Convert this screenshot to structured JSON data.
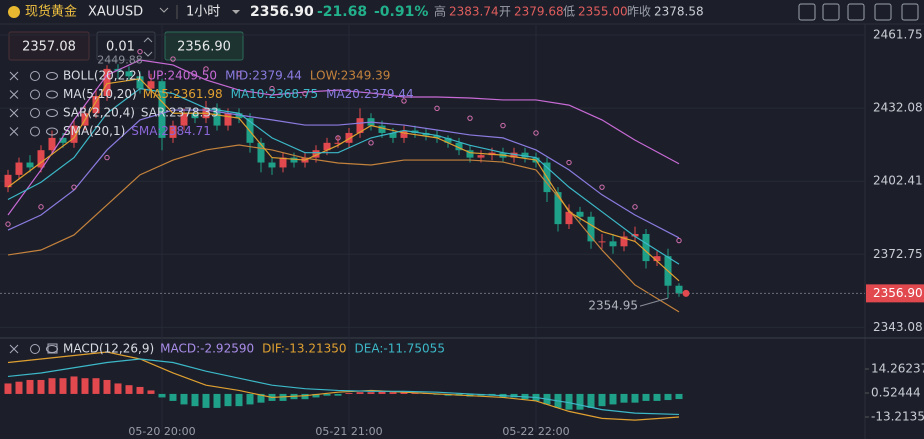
{
  "header": {
    "title": "现货黄金",
    "symbol": "XAUUSD",
    "interval": "1小时",
    "price": "2356.90",
    "change": "-21.68",
    "change_pct": "-0.91%",
    "stats": [
      {
        "label": "高",
        "value": "2383.74"
      },
      {
        "label": "开",
        "value": "2379.68"
      },
      {
        "label": "低",
        "value": "2355.00"
      },
      {
        "label": "昨收",
        "value": "2378.58"
      }
    ]
  },
  "order_panel": {
    "sell": "2357.08",
    "lot": "0.01",
    "buy": "2356.90"
  },
  "chart_data": {
    "type": "candlestick",
    "categories": [
      null,
      null,
      null,
      null,
      null,
      null,
      null,
      null,
      null,
      null,
      null,
      null,
      null,
      null,
      "05-20 20:00",
      null,
      null,
      null,
      null,
      null,
      null,
      null,
      null,
      null,
      null,
      null,
      null,
      null,
      null,
      null,
      null,
      "05-21 21:00",
      null,
      null,
      null,
      null,
      null,
      null,
      null,
      null,
      null,
      null,
      null,
      null,
      null,
      null,
      null,
      null,
      "05-22 22:00",
      null,
      null,
      null,
      null,
      null,
      null,
      null,
      null,
      null,
      null,
      null,
      null,
      null
    ],
    "open": [
      2400,
      2405,
      2410,
      2408,
      2415,
      2420,
      2418,
      2425,
      2430,
      2437,
      2448,
      2447,
      2445,
      2440,
      2443,
      2420,
      2425,
      2430,
      2428,
      2432,
      2425,
      2430,
      2428,
      2418,
      2410,
      2408,
      2412,
      2410,
      2412,
      2415,
      2418,
      2418,
      2422,
      2428,
      2425,
      2422,
      2420,
      2423,
      2422,
      2421,
      2420,
      2418,
      2415,
      2412,
      2413,
      2414,
      2412,
      2414,
      2412,
      2410,
      2398,
      2385,
      2390,
      2388,
      2378,
      2378,
      2376,
      2380,
      2381,
      2370,
      2372,
      2360
    ],
    "high": [
      2407,
      2412,
      2413,
      2417,
      2423,
      2422,
      2427,
      2433,
      2440,
      2449.5,
      2449.88,
      2449,
      2447,
      2446,
      2444,
      2427,
      2432,
      2432,
      2435,
      2434,
      2432,
      2432,
      2430,
      2420,
      2412,
      2414,
      2414,
      2414,
      2417,
      2420,
      2421,
      2424,
      2432,
      2430,
      2427,
      2424,
      2425,
      2425,
      2424,
      2423,
      2421,
      2420,
      2417,
      2415,
      2416,
      2416,
      2416,
      2416,
      2414,
      2412,
      2400,
      2393,
      2392,
      2390,
      2381,
      2381,
      2382,
      2384,
      2383,
      2374,
      2375,
      2361
    ],
    "low": [
      2398,
      2403,
      2406,
      2406,
      2413,
      2416,
      2416,
      2423,
      2428,
      2435,
      2444,
      2443,
      2438,
      2438,
      2415,
      2418,
      2423,
      2426,
      2426,
      2423,
      2423,
      2426,
      2414,
      2406,
      2405,
      2406,
      2408,
      2408,
      2410,
      2413,
      2416,
      2416,
      2420,
      2423,
      2420,
      2418,
      2418,
      2420,
      2419,
      2418,
      2416,
      2413,
      2410,
      2410,
      2411,
      2410,
      2410,
      2410,
      2408,
      2394,
      2382,
      2383,
      2386,
      2375,
      2375,
      2373,
      2374,
      2378,
      2367,
      2368,
      2354.95,
      2355.5
    ],
    "close": [
      2405,
      2410,
      2408,
      2415,
      2420,
      2418,
      2425,
      2430,
      2437,
      2448,
      2447,
      2445,
      2440,
      2443,
      2420,
      2425,
      2430,
      2428,
      2432,
      2425,
      2430,
      2428,
      2418,
      2410,
      2408,
      2412,
      2410,
      2412,
      2415,
      2418,
      2418,
      2422,
      2428,
      2425,
      2422,
      2420,
      2423,
      2422,
      2421,
      2420,
      2418,
      2415,
      2412,
      2413,
      2414,
      2412,
      2414,
      2412,
      2410,
      2398,
      2385,
      2390,
      2388,
      2378,
      2378,
      2376,
      2380,
      2381,
      2370,
      2372,
      2360,
      2356.9
    ],
    "up_color": "#e2494f",
    "down_color": "#1fa088",
    "ylim": [
      2340,
      2464.6
    ],
    "yticks": [
      2343.08,
      2372.75,
      2402.41,
      2432.08,
      2461.75
    ],
    "grid": true,
    "overlays": [
      {
        "color": "#c86ad6",
        "x": [
          0,
          3,
          6,
          9,
          12,
          15,
          18,
          21,
          24,
          27,
          30,
          33,
          36,
          39,
          42,
          45,
          48,
          51,
          54,
          57,
          61
        ],
        "values": [
          2388.7,
          2407,
          2427.3,
          2445.5,
          2451.6,
          2449.6,
          2443.5,
          2439.4,
          2437.4,
          2438.6,
          2439.4,
          2438.2,
          2436.6,
          2436.6,
          2436.2,
          2435.4,
          2435.4,
          2433.3,
          2427.3,
          2419.1,
          2409.5
        ]
      },
      {
        "color": "#8b7be0",
        "x": [
          0,
          3,
          6,
          9,
          12,
          15,
          18,
          21,
          24,
          27,
          30,
          33,
          36,
          39,
          42,
          45,
          48,
          51,
          54,
          57,
          61
        ],
        "values": [
          2382.6,
          2388.7,
          2398.8,
          2415.1,
          2427.3,
          2431.3,
          2431.3,
          2429.3,
          2427.3,
          2425.2,
          2425.2,
          2426.4,
          2425.2,
          2423.2,
          2421.2,
          2420,
          2415.1,
          2407,
          2396.9,
          2388.7,
          2379.44
        ]
      },
      {
        "color": "#c4823c",
        "x": [
          0,
          3,
          6,
          9,
          12,
          15,
          18,
          21,
          24,
          27,
          30,
          33,
          36,
          39,
          42,
          45,
          48,
          51,
          54,
          57,
          61
        ],
        "values": [
          2372.5,
          2374.5,
          2380.6,
          2392.8,
          2405,
          2411,
          2415.1,
          2417.1,
          2415.1,
          2411.8,
          2409.8,
          2409,
          2411,
          2411,
          2411,
          2410.2,
          2407,
          2390.7,
          2374.5,
          2360.3,
          2349.39
        ]
      },
      {
        "color": "#e0a030",
        "x": [
          0,
          3,
          6,
          9,
          12,
          15,
          18,
          21,
          24,
          27,
          30,
          33,
          36,
          39,
          42,
          45,
          48,
          51,
          54,
          57,
          61
        ],
        "values": [
          2400,
          2410,
          2420,
          2442,
          2444,
          2430,
          2430,
          2428,
          2412,
          2411,
          2417,
          2425,
          2422,
          2420,
          2414,
          2413,
          2411,
          2390,
          2382,
          2378,
          2361.98
        ]
      },
      {
        "color": "#3cb8c8",
        "x": [
          0,
          3,
          6,
          9,
          12,
          15,
          18,
          21,
          24,
          27,
          30,
          33,
          36,
          39,
          42,
          45,
          48,
          51,
          54,
          57,
          61
        ],
        "values": [
          2395,
          2402,
          2412,
          2430,
          2440,
          2438,
          2432,
          2430,
          2420,
          2414,
          2414,
          2420,
          2423,
          2421,
          2417,
          2414,
          2412,
          2400,
          2390,
          2380,
          2368.75
        ]
      }
    ],
    "sar": {
      "color": "#d46fb0",
      "x": [
        0,
        3,
        6,
        9,
        12,
        15,
        18,
        21,
        24,
        27,
        30,
        33,
        36,
        39,
        42,
        45,
        48,
        51,
        54,
        57,
        61
      ],
      "values": [
        2385,
        2392,
        2400,
        2412,
        2455,
        2452,
        2448,
        2446,
        2440,
        2438,
        2420,
        2418,
        2435,
        2432,
        2428,
        2425,
        2422,
        2410,
        2400,
        2392,
        2378.33
      ]
    },
    "last_price": {
      "value": 2356.9,
      "label": "2356.90"
    },
    "high_mark": 2449.88,
    "low_mark": 2354.95,
    "indicators": [
      {
        "name": "BOLL(20,2,2)",
        "items": [
          {
            "text": "UP:2409.50",
            "color": "#c86ad6"
          },
          {
            "text": "MID:2379.44",
            "color": "#8b7be0"
          },
          {
            "text": "LOW:2349.39",
            "color": "#c4823c"
          }
        ]
      },
      {
        "name": "MA(5,10,20)",
        "items": [
          {
            "text": "MA5:2361.98",
            "color": "#e0a030"
          },
          {
            "text": "MA10:2368.75",
            "color": "#3cb8c8"
          },
          {
            "text": "MA20:2379.44",
            "color": "#8b7be0"
          }
        ]
      },
      {
        "name": "SAR(2,20,4)",
        "items": [
          {
            "text": "SAR:2378.33",
            "color": "#d0d4dc"
          }
        ]
      },
      {
        "name": "SMA(20,1)",
        "items": [
          {
            "text": "SMA:2384.71",
            "color": "#8a66d8"
          }
        ]
      }
    ],
    "macd": {
      "type": "bar",
      "name": "MACD(12,26,9)",
      "items": [
        {
          "text": "MACD:-2.92590",
          "color": "#a98ce8"
        },
        {
          "text": "DIF:-13.21350",
          "color": "#e0a030"
        },
        {
          "text": "DEA:-11.75055",
          "color": "#3cb8c8"
        }
      ],
      "ylim": [
        -21.8,
        26.3
      ],
      "yticks": [
        14.26237,
        0.52444,
        {
          "value": -13.2135,
          "label": "-13.21350"
        }
      ],
      "values": [
        6,
        7,
        8,
        8,
        9,
        9,
        10,
        9,
        9,
        8,
        6,
        5,
        4,
        2,
        -2,
        -4,
        -6,
        -7,
        -8,
        -8,
        -7,
        -7,
        -6,
        -5,
        -4,
        -4,
        -3,
        -3,
        -2,
        -1,
        -1,
        0.5,
        1,
        1,
        1.5,
        1,
        1,
        0.5,
        0.5,
        -0.5,
        -1,
        -1,
        -1.5,
        -1,
        -1,
        -2,
        -2,
        -3,
        -4,
        -6,
        -8,
        -9,
        -9,
        -8,
        -7,
        -6,
        -5,
        -5,
        -4,
        -4,
        -3.5,
        -2.9259
      ],
      "dif": {
        "color": "#e0a030",
        "x": [
          0,
          3,
          6,
          9,
          12,
          15,
          18,
          21,
          24,
          27,
          30,
          33,
          36,
          39,
          42,
          45,
          48,
          51,
          54,
          57,
          61
        ],
        "values": [
          18,
          20,
          22,
          24,
          20,
          12,
          5,
          2,
          -2,
          -1,
          1,
          2,
          1,
          0,
          -1,
          -2,
          -4,
          -10,
          -14,
          -15,
          -13.2135
        ]
      },
      "dea": {
        "color": "#3cb8c8",
        "x": [
          0,
          3,
          6,
          9,
          12,
          15,
          18,
          21,
          24,
          27,
          30,
          33,
          36,
          39,
          42,
          45,
          48,
          51,
          54,
          57,
          61
        ],
        "values": [
          10,
          12,
          15,
          18,
          20,
          18,
          13,
          9,
          5,
          3,
          2,
          1.5,
          1.5,
          1,
          0,
          -1,
          -2,
          -5,
          -9,
          -11,
          -11.75055
        ]
      }
    }
  }
}
